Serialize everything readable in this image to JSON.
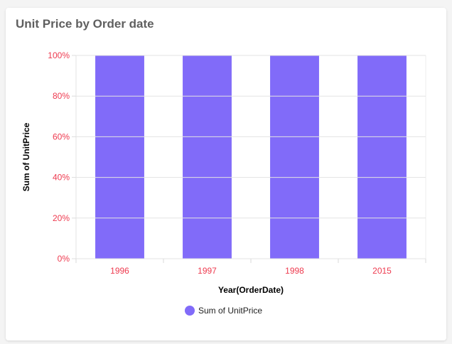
{
  "title": "Unit Price by Order date",
  "chart_data": {
    "type": "bar",
    "stacking": "100%",
    "categories": [
      "1996",
      "1997",
      "1998",
      "2015"
    ],
    "series": [
      {
        "name": "Sum of UnitPrice",
        "values": [
          100,
          100,
          100,
          100
        ],
        "color": "#816bf9"
      }
    ],
    "xlabel": "Year(OrderDate)",
    "ylabel": "Sum of UnitPrice",
    "ylim": [
      0,
      100
    ],
    "yticks": [
      "0%",
      "20%",
      "40%",
      "60%",
      "80%",
      "100%"
    ],
    "grid": true,
    "legend": "bottom",
    "tick_color": "#ee3a4f"
  }
}
